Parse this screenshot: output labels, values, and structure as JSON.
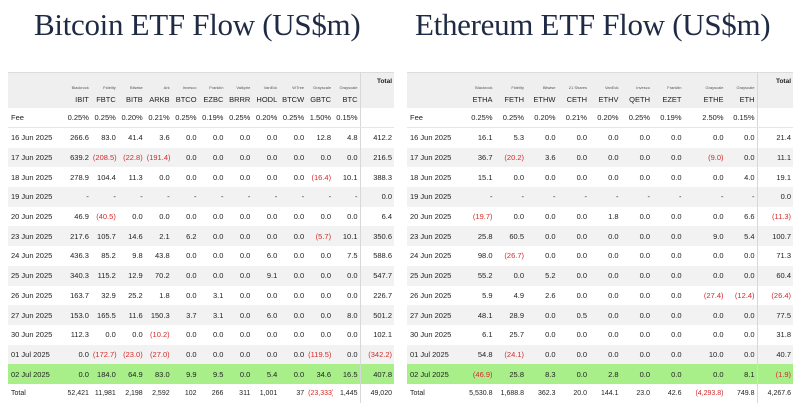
{
  "btc": {
    "title": "Bitcoin ETF Flow (US$m)",
    "issuers": [
      "",
      "Blackrock",
      "Fidelity",
      "Bitwise",
      "Ark",
      "Invesco",
      "Franklin",
      "Valkyrie",
      "VanEck",
      "WTree",
      "Grayscale",
      "Grayscale",
      "Total"
    ],
    "tickers": [
      "",
      "IBIT",
      "FBTC",
      "BITB",
      "ARKB",
      "BTCO",
      "EZBC",
      "BRRR",
      "HODL",
      "BTCW",
      "GBTC",
      "BTC",
      ""
    ],
    "fees": [
      "Fee",
      "0.25%",
      "0.25%",
      "0.20%",
      "0.21%",
      "0.25%",
      "0.19%",
      "0.25%",
      "0.20%",
      "0.25%",
      "1.50%",
      "0.15%",
      ""
    ],
    "rows": [
      [
        "16 Jun 2025",
        "266.6",
        "83.0",
        "41.4",
        "3.6",
        "0.0",
        "0.0",
        "0.0",
        "0.0",
        "0.0",
        "12.8",
        "4.8",
        "412.2"
      ],
      [
        "17 Jun 2025",
        "639.2",
        "(208.5)",
        "(22.8)",
        "(191.4)",
        "0.0",
        "0.0",
        "0.0",
        "0.0",
        "0.0",
        "0.0",
        "0.0",
        "216.5"
      ],
      [
        "18 Jun 2025",
        "278.9",
        "104.4",
        "11.3",
        "0.0",
        "0.0",
        "0.0",
        "0.0",
        "0.0",
        "0.0",
        "(16.4)",
        "10.1",
        "388.3"
      ],
      [
        "19 Jun 2025",
        "-",
        "-",
        "-",
        "-",
        "-",
        "-",
        "-",
        "-",
        "-",
        "-",
        "-",
        "0.0"
      ],
      [
        "20 Jun 2025",
        "46.9",
        "(40.5)",
        "0.0",
        "0.0",
        "0.0",
        "0.0",
        "0.0",
        "0.0",
        "0.0",
        "0.0",
        "0.0",
        "6.4"
      ],
      [
        "23 Jun 2025",
        "217.6",
        "105.7",
        "14.6",
        "2.1",
        "6.2",
        "0.0",
        "0.0",
        "0.0",
        "0.0",
        "(5.7)",
        "10.1",
        "350.6"
      ],
      [
        "24 Jun 2025",
        "436.3",
        "85.2",
        "9.8",
        "43.8",
        "0.0",
        "0.0",
        "0.0",
        "6.0",
        "0.0",
        "0.0",
        "7.5",
        "588.6"
      ],
      [
        "25 Jun 2025",
        "340.3",
        "115.2",
        "12.9",
        "70.2",
        "0.0",
        "0.0",
        "0.0",
        "9.1",
        "0.0",
        "0.0",
        "0.0",
        "547.7"
      ],
      [
        "26 Jun 2025",
        "163.7",
        "32.9",
        "25.2",
        "1.8",
        "0.0",
        "3.1",
        "0.0",
        "0.0",
        "0.0",
        "0.0",
        "0.0",
        "226.7"
      ],
      [
        "27 Jun 2025",
        "153.0",
        "165.5",
        "11.6",
        "150.3",
        "3.7",
        "3.1",
        "0.0",
        "6.0",
        "0.0",
        "0.0",
        "8.0",
        "501.2"
      ],
      [
        "30 Jun 2025",
        "112.3",
        "0.0",
        "0.0",
        "(10.2)",
        "0.0",
        "0.0",
        "0.0",
        "0.0",
        "0.0",
        "0.0",
        "0.0",
        "102.1"
      ],
      [
        "01 Jul 2025",
        "0.0",
        "(172.7)",
        "(23.0)",
        "(27.0)",
        "0.0",
        "0.0",
        "0.0",
        "0.0",
        "0.0",
        "(119.5)",
        "0.0",
        "(342.2)"
      ],
      [
        "02 Jul 2025",
        "0.0",
        "184.0",
        "64.9",
        "83.0",
        "9.9",
        "9.5",
        "0.0",
        "5.4",
        "0.0",
        "34.6",
        "16.5",
        "407.8"
      ]
    ],
    "total_row": [
      "Total",
      "52,421",
      "11,981",
      "2,198",
      "2,592",
      "102",
      "266",
      "311",
      "1,001",
      "37",
      "(23,333)",
      "1,445",
      "49,020"
    ]
  },
  "eth": {
    "title": "Ethereum ETF Flow (US$m)",
    "issuers": [
      "",
      "Blackrock",
      "Fidelity",
      "Bitwise",
      "21 Shares",
      "VanEck",
      "Invesco",
      "Franklin",
      "Grayscale",
      "Grayscale",
      "Total"
    ],
    "tickers": [
      "",
      "ETHA",
      "FETH",
      "ETHW",
      "CETH",
      "ETHV",
      "QETH",
      "EZET",
      "ETHE",
      "ETH",
      ""
    ],
    "fees": [
      "Fee",
      "0.25%",
      "0.25%",
      "0.20%",
      "0.21%",
      "0.20%",
      "0.25%",
      "0.19%",
      "2.50%",
      "0.15%",
      ""
    ],
    "rows": [
      [
        "16 Jun 2025",
        "16.1",
        "5.3",
        "0.0",
        "0.0",
        "0.0",
        "0.0",
        "0.0",
        "0.0",
        "0.0",
        "21.4"
      ],
      [
        "17 Jun 2025",
        "36.7",
        "(20.2)",
        "3.6",
        "0.0",
        "0.0",
        "0.0",
        "0.0",
        "(9.0)",
        "0.0",
        "11.1"
      ],
      [
        "18 Jun 2025",
        "15.1",
        "0.0",
        "0.0",
        "0.0",
        "0.0",
        "0.0",
        "0.0",
        "0.0",
        "4.0",
        "19.1"
      ],
      [
        "19 Jun 2025",
        "-",
        "-",
        "-",
        "-",
        "-",
        "-",
        "-",
        "-",
        "-",
        "0.0"
      ],
      [
        "20 Jun 2025",
        "(19.7)",
        "0.0",
        "0.0",
        "0.0",
        "1.8",
        "0.0",
        "0.0",
        "0.0",
        "6.6",
        "(11.3)"
      ],
      [
        "23 Jun 2025",
        "25.8",
        "60.5",
        "0.0",
        "0.0",
        "0.0",
        "0.0",
        "0.0",
        "9.0",
        "5.4",
        "100.7"
      ],
      [
        "24 Jun 2025",
        "98.0",
        "(26.7)",
        "0.0",
        "0.0",
        "0.0",
        "0.0",
        "0.0",
        "0.0",
        "0.0",
        "71.3"
      ],
      [
        "25 Jun 2025",
        "55.2",
        "0.0",
        "5.2",
        "0.0",
        "0.0",
        "0.0",
        "0.0",
        "0.0",
        "0.0",
        "60.4"
      ],
      [
        "26 Jun 2025",
        "5.9",
        "4.9",
        "2.6",
        "0.0",
        "0.0",
        "0.0",
        "0.0",
        "(27.4)",
        "(12.4)",
        "(26.4)"
      ],
      [
        "27 Jun 2025",
        "48.1",
        "28.9",
        "0.0",
        "0.5",
        "0.0",
        "0.0",
        "0.0",
        "0.0",
        "0.0",
        "77.5"
      ],
      [
        "30 Jun 2025",
        "6.1",
        "25.7",
        "0.0",
        "0.0",
        "0.0",
        "0.0",
        "0.0",
        "0.0",
        "0.0",
        "31.8"
      ],
      [
        "01 Jul 2025",
        "54.8",
        "(24.1)",
        "0.0",
        "0.0",
        "0.0",
        "0.0",
        "0.0",
        "10.0",
        "0.0",
        "40.7"
      ],
      [
        "02 Jul 2025",
        "(46.9)",
        "25.8",
        "8.3",
        "0.0",
        "2.8",
        "0.0",
        "0.0",
        "0.0",
        "8.1",
        "(1.9)"
      ]
    ],
    "total_row": [
      "Total",
      "5,530.8",
      "1,688.8",
      "362.3",
      "20.0",
      "144.1",
      "23.0",
      "42.6",
      "(4,293.8)",
      "749.8",
      "4,267.6"
    ]
  },
  "colors": {
    "highlight_row": "#a8ef8a",
    "negative": "#d42a2a",
    "header_bg": "#efefef",
    "title": "#1f2a44"
  }
}
